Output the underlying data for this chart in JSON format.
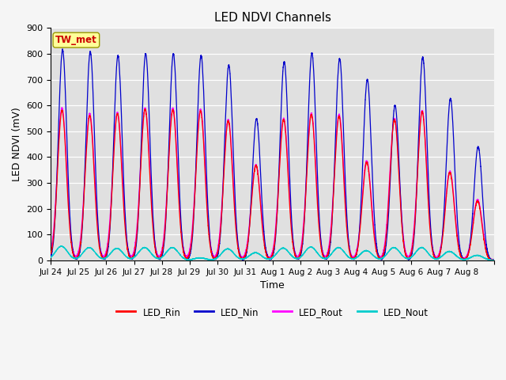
{
  "title": "LED NDVI Channels",
  "xlabel": "Time",
  "ylabel": "LED NDVI (mV)",
  "ylim": [
    0,
    900
  ],
  "plot_bg_color": "#e0e0e0",
  "fig_bg_color": "#f5f5f5",
  "label_box_text": "TW_met",
  "label_box_color": "#ffff99",
  "label_box_text_color": "#cc0000",
  "line_colors": {
    "LED_Rin": "#ff0000",
    "LED_Nin": "#0000cc",
    "LED_Rout": "#ff00ff",
    "LED_Nout": "#00cccc"
  },
  "xtick_labels": [
    "Jul 24",
    "Jul 25",
    "Jul 26",
    "Jul 27",
    "Jul 28",
    "Jul 29",
    "Jul 30",
    "Jul 31",
    "Aug 1",
    "Aug 2",
    "Aug 3",
    "Aug 4",
    "Aug 5",
    "Aug 6",
    "Aug 7",
    "Aug 8"
  ],
  "nin_peaks": [
    815,
    808,
    793,
    800,
    800,
    793,
    756,
    548,
    769,
    803,
    781,
    700,
    600,
    787,
    626,
    440
  ],
  "rout_peaks": [
    590,
    568,
    573,
    590,
    590,
    585,
    545,
    370,
    550,
    570,
    565,
    385,
    550,
    580,
    345,
    235
  ],
  "rin_peaks": [
    580,
    560,
    568,
    585,
    583,
    578,
    540,
    368,
    545,
    565,
    558,
    380,
    545,
    575,
    340,
    230
  ],
  "nout_peaks": [
    55,
    50,
    47,
    50,
    50,
    10,
    45,
    30,
    48,
    52,
    50,
    38,
    50,
    50,
    35,
    20
  ],
  "total_days": 16,
  "points_per_day": 500
}
